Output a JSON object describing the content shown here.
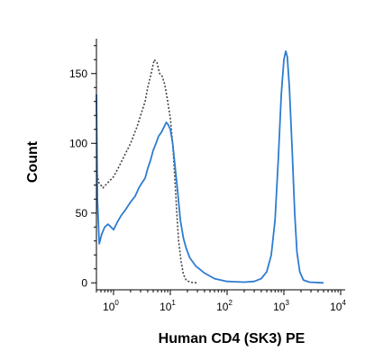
{
  "chart_data": {
    "type": "line",
    "title": "",
    "xlabel": "Human CD4 (SK3) PE",
    "ylabel": "Count",
    "x_scale": "log",
    "xlim": [
      0.5,
      12000
    ],
    "ylim": [
      -5,
      175
    ],
    "grid": false,
    "legend": "none",
    "y_ticks": [
      0,
      50,
      100,
      150
    ],
    "y_tick_labels": [
      "0",
      "50",
      "100",
      "150"
    ],
    "x_ticks": [
      1,
      10,
      100,
      1000,
      10000
    ],
    "x_tick_labels": [
      {
        "base": "10",
        "exp": "0"
      },
      {
        "base": "10",
        "exp": "1"
      },
      {
        "base": "10",
        "exp": "2"
      },
      {
        "base": "10",
        "exp": "3"
      },
      {
        "base": "10",
        "exp": "4"
      }
    ],
    "series": [
      {
        "style": "dotted",
        "color": "#444444",
        "points": [
          [
            0.5,
            80
          ],
          [
            0.55,
            72
          ],
          [
            0.65,
            68
          ],
          [
            0.8,
            72
          ],
          [
            1.0,
            76
          ],
          [
            1.2,
            82
          ],
          [
            1.5,
            90
          ],
          [
            2.0,
            100
          ],
          [
            2.6,
            112
          ],
          [
            3.0,
            120
          ],
          [
            3.6,
            130
          ],
          [
            4.0,
            140
          ],
          [
            4.6,
            150
          ],
          [
            5.2,
            160
          ],
          [
            5.8,
            158
          ],
          [
            6.5,
            150
          ],
          [
            7.2,
            148
          ],
          [
            8.0,
            142
          ],
          [
            9.0,
            130
          ],
          [
            10.0,
            118
          ],
          [
            11.0,
            100
          ],
          [
            12.0,
            75
          ],
          [
            13.0,
            50
          ],
          [
            14.0,
            30
          ],
          [
            15.5,
            15
          ],
          [
            17.0,
            6
          ],
          [
            19.0,
            2
          ],
          [
            22.0,
            0.5
          ],
          [
            30.0,
            0
          ]
        ]
      },
      {
        "style": "solid",
        "color": "#2e7cd1",
        "points": [
          [
            0.5,
            135
          ],
          [
            0.52,
            60
          ],
          [
            0.56,
            28
          ],
          [
            0.62,
            35
          ],
          [
            0.7,
            40
          ],
          [
            0.8,
            42
          ],
          [
            0.9,
            40
          ],
          [
            1.0,
            38
          ],
          [
            1.15,
            43
          ],
          [
            1.35,
            48
          ],
          [
            1.6,
            52
          ],
          [
            2.0,
            58
          ],
          [
            2.4,
            62
          ],
          [
            2.8,
            68
          ],
          [
            3.2,
            72
          ],
          [
            3.6,
            75
          ],
          [
            4.0,
            82
          ],
          [
            4.5,
            88
          ],
          [
            5.0,
            95
          ],
          [
            5.6,
            100
          ],
          [
            6.2,
            105
          ],
          [
            7.0,
            108
          ],
          [
            7.8,
            112
          ],
          [
            8.5,
            115
          ],
          [
            9.0,
            114
          ],
          [
            10.0,
            110
          ],
          [
            11.0,
            100
          ],
          [
            12.0,
            85
          ],
          [
            13.5,
            65
          ],
          [
            15.0,
            45
          ],
          [
            17.0,
            32
          ],
          [
            19.0,
            25
          ],
          [
            22.0,
            18
          ],
          [
            28.0,
            12
          ],
          [
            40.0,
            7
          ],
          [
            60.0,
            3
          ],
          [
            100.0,
            1
          ],
          [
            200.0,
            0.5
          ],
          [
            300.0,
            1
          ],
          [
            400.0,
            3
          ],
          [
            500.0,
            8
          ],
          [
            600.0,
            20
          ],
          [
            700.0,
            45
          ],
          [
            800.0,
            90
          ],
          [
            900.0,
            135
          ],
          [
            1000.0,
            160
          ],
          [
            1080.0,
            166
          ],
          [
            1150.0,
            162
          ],
          [
            1250.0,
            140
          ],
          [
            1400.0,
            95
          ],
          [
            1550.0,
            50
          ],
          [
            1700.0,
            22
          ],
          [
            1900.0,
            8
          ],
          [
            2200.0,
            2
          ],
          [
            2800.0,
            0.5
          ],
          [
            5000.0,
            0
          ]
        ]
      }
    ]
  }
}
